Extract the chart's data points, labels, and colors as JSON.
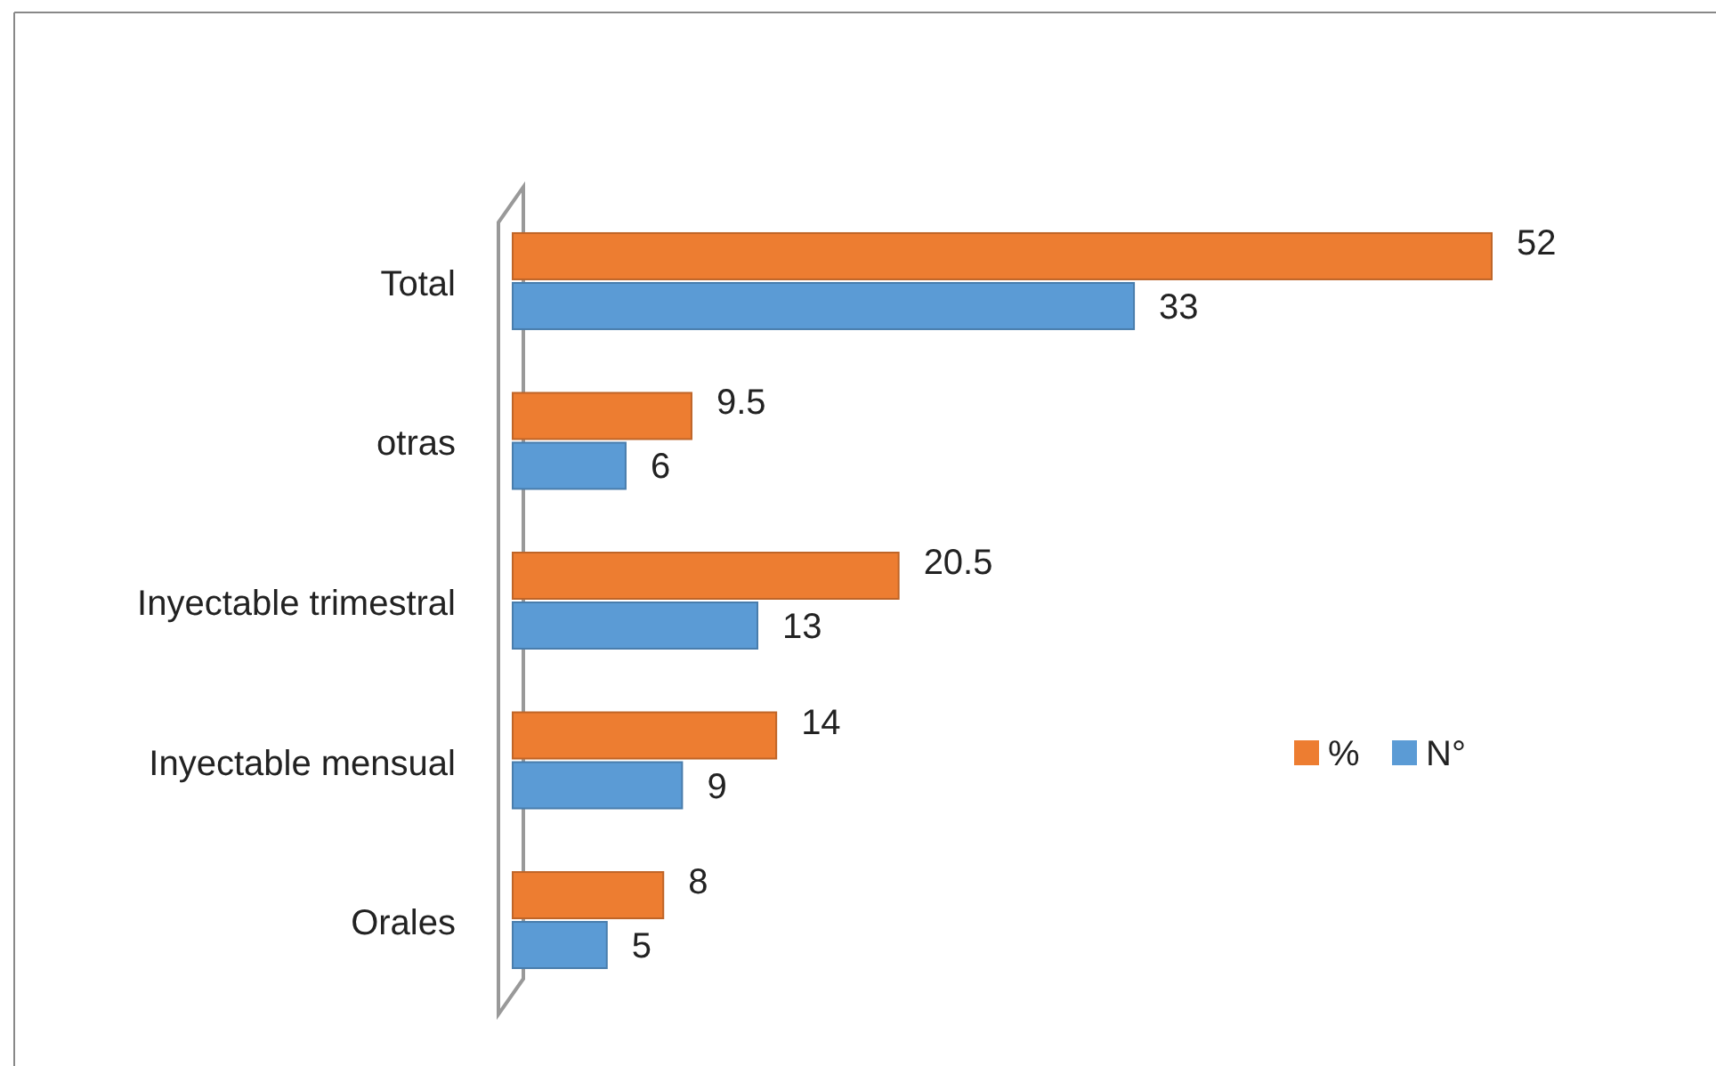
{
  "chart_data": {
    "type": "bar",
    "orientation": "horizontal",
    "categories": [
      "Total",
      "otras",
      "Inyectable trimestral",
      "Inyectable mensual",
      "Orales"
    ],
    "series": [
      {
        "name": "%",
        "color": "#ed7d31",
        "values": [
          52,
          9.5,
          20.5,
          14,
          8
        ]
      },
      {
        "name": "N°",
        "color": "#5b9bd5",
        "values": [
          33,
          6,
          13,
          9,
          5
        ]
      }
    ],
    "data_labels": true,
    "legend": "right",
    "grid": false
  }
}
